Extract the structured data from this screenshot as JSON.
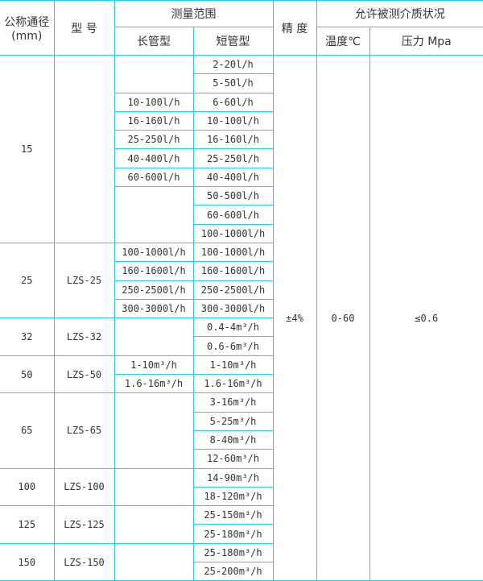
{
  "header": {
    "diameter": "公称通径\n(mm)",
    "model": "型 号",
    "range": "测量范围",
    "long": "长管型",
    "short": "短管型",
    "accuracy": "精 度",
    "medium": "允许被测介质状况",
    "temperature": "温度℃",
    "pressure": "压力 Mpa"
  },
  "shared": {
    "accuracy": "±4%",
    "temperature": "0-60",
    "pressure": "≤0.6"
  },
  "groups": [
    {
      "diameter": "15",
      "model": "",
      "long": [
        null,
        null,
        "10-100l/h",
        "16-160l/h",
        "25-250l/h",
        "40-400l/h",
        "60-600l/h",
        null,
        null,
        null
      ],
      "short": [
        "2-20l/h",
        "5-50l/h",
        "6-60l/h",
        "10-100l/h",
        "16-160l/h",
        "25-250l/h",
        "40-400l/h",
        "50-500l/h",
        "60-600l/h",
        "100-1000l/h"
      ]
    },
    {
      "diameter": "25",
      "model": "LZS-25",
      "long": [
        "100-1000l/h",
        "160-1600l/h",
        "250-2500l/h",
        "300-3000l/h"
      ],
      "short": [
        "100-1000l/h",
        "160-1600l/h",
        "250-2500l/h",
        "300-3000l/h"
      ]
    },
    {
      "diameter": "32",
      "model": "LZS-32",
      "long": [
        null,
        null
      ],
      "short": [
        "0.4-4m³/h",
        "0.6-6m³/h"
      ]
    },
    {
      "diameter": "50",
      "model": "LZS-50",
      "long": [
        "1-10m³/h",
        "1.6-16m³/h"
      ],
      "short": [
        "1-10m³/h",
        "1.6-16m³/h"
      ]
    },
    {
      "diameter": "65",
      "model": "LZS-65",
      "long": [
        null,
        null,
        null,
        null
      ],
      "short": [
        "3-16m³/h",
        "5-25m³/h",
        "8-40m³/h",
        "12-60m³/h"
      ]
    },
    {
      "diameter": "100",
      "model": "LZS-100",
      "long": [
        null,
        null
      ],
      "short": [
        "14-90m³/h",
        "18-120m³/h"
      ]
    },
    {
      "diameter": "125",
      "model": "LZS-125",
      "long": [
        null,
        null
      ],
      "short": [
        "25-150m³/h",
        "25-180m³/h"
      ]
    },
    {
      "diameter": "150",
      "model": "LZS-150",
      "long": [
        null,
        null
      ],
      "short": [
        "25-180m³/h",
        "25-200m³/h"
      ]
    }
  ]
}
